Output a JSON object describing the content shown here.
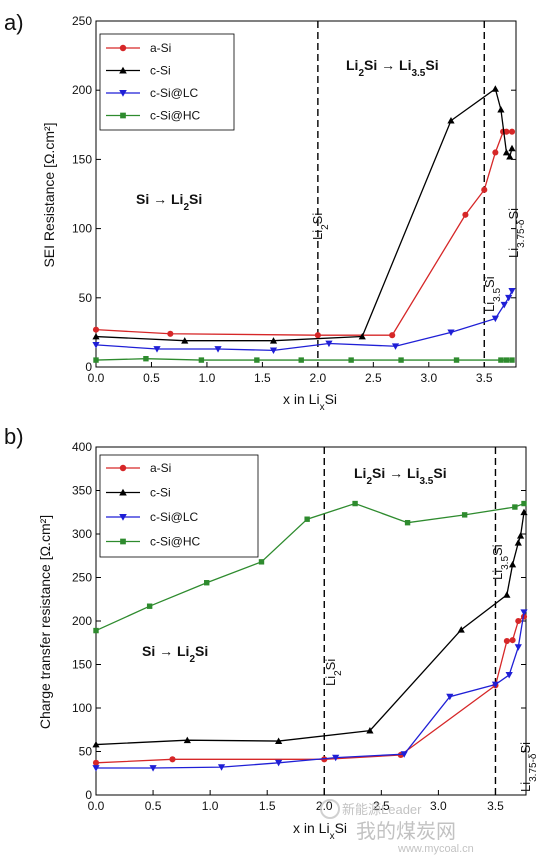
{
  "chart_data": [
    {
      "type": "line",
      "panel_label": "a)",
      "xlabel": "x in LiₓSi",
      "xlabel_main": "x in Li",
      "xlabel_sub": "x",
      "xlabel_tail": "Si",
      "ylabel": "SEI Resistance [Ω.cm²]",
      "xlim": [
        0,
        3.75
      ],
      "ylim": [
        0,
        250
      ],
      "xticks": [
        "0.0",
        "0.5",
        "1.0",
        "1.5",
        "2.0",
        "2.5",
        "3.0",
        "3.5"
      ],
      "yticks": [
        "0",
        "50",
        "100",
        "150",
        "200",
        "250"
      ],
      "grid": false,
      "legend_position": "top-left",
      "series": [
        {
          "name": "a-Si",
          "color": "#d62728",
          "marker": "circle",
          "x": [
            0,
            0.67,
            2.0,
            2.67,
            3.33,
            3.5,
            3.6,
            3.67,
            3.7,
            3.75
          ],
          "y": [
            27,
            24,
            23,
            23,
            110,
            128,
            155,
            170,
            170,
            170
          ]
        },
        {
          "name": "c-Si",
          "color": "#000000",
          "marker": "triangle-up",
          "x": [
            0,
            0.8,
            1.6,
            2.4,
            3.2,
            3.6,
            3.65,
            3.7,
            3.73,
            3.75
          ],
          "y": [
            22,
            19,
            19,
            22,
            178,
            201,
            186,
            155,
            152,
            158
          ]
        },
        {
          "name": "c-Si@LC",
          "color": "#1f1fd6",
          "marker": "triangle-down",
          "x": [
            0,
            0.55,
            1.1,
            1.6,
            2.1,
            2.7,
            3.2,
            3.6,
            3.68,
            3.72,
            3.75
          ],
          "y": [
            16,
            13,
            13,
            12,
            17,
            15,
            25,
            35,
            45,
            50,
            55
          ]
        },
        {
          "name": "c-Si@HC",
          "color": "#2e8b2e",
          "marker": "square",
          "x": [
            0,
            0.45,
            0.95,
            1.45,
            1.85,
            2.3,
            2.75,
            3.25,
            3.65,
            3.7,
            3.75
          ],
          "y": [
            5,
            6,
            5,
            5,
            5,
            5,
            5,
            5,
            5,
            5,
            5
          ]
        }
      ],
      "vlines": [
        2.0,
        3.5
      ],
      "annotations": {
        "region1_main": "Si → Li",
        "region1_sub": "2",
        "region1_tail": "Si",
        "region2_a": "Li",
        "region2_a_sub": "2",
        "region2_b": "Si → Li",
        "region2_b_sub": "3.5",
        "region2_c": "Si",
        "vline1_main": "Li",
        "vline1_sub": "2",
        "vline1_tail": "Si",
        "vline2_main": "Li",
        "vline2_sub": "3.5",
        "vline2_tail": "Si",
        "vline3_main": "Li",
        "vline3_sub": "3.75-δ",
        "vline3_tail": "Si"
      }
    },
    {
      "type": "line",
      "panel_label": "b)",
      "xlabel": "x in LiₓSi",
      "xlabel_main": "x in Li",
      "xlabel_sub": "x",
      "xlabel_tail": "Si",
      "ylabel": "Charge transfer resistance [Ω.cm²]",
      "xlim": [
        0,
        3.75
      ],
      "ylim": [
        0,
        400
      ],
      "xticks": [
        "0.0",
        "0.5",
        "1.0",
        "1.5",
        "2.0",
        "2.5",
        "3.0",
        "3.5"
      ],
      "yticks": [
        "0",
        "50",
        "100",
        "150",
        "200",
        "250",
        "300",
        "350",
        "400"
      ],
      "grid": false,
      "legend_position": "top-left",
      "series": [
        {
          "name": "a-Si",
          "color": "#d62728",
          "marker": "circle",
          "x": [
            0,
            0.67,
            2.0,
            2.67,
            3.5,
            3.6,
            3.65,
            3.7,
            3.75
          ],
          "y": [
            37,
            41,
            41,
            46,
            126,
            177,
            178,
            200,
            205
          ]
        },
        {
          "name": "c-Si",
          "color": "#000000",
          "marker": "triangle-up",
          "x": [
            0,
            0.8,
            1.6,
            2.4,
            3.2,
            3.6,
            3.65,
            3.7,
            3.72,
            3.75
          ],
          "y": [
            58,
            63,
            62,
            74,
            190,
            230,
            265,
            290,
            298,
            325
          ]
        },
        {
          "name": "c-Si@LC",
          "color": "#1f1fd6",
          "marker": "triangle-down",
          "x": [
            0,
            0.5,
            1.1,
            1.6,
            2.1,
            2.7,
            3.1,
            3.5,
            3.62,
            3.7,
            3.75
          ],
          "y": [
            31,
            31,
            32,
            37,
            43,
            47,
            113,
            127,
            138,
            170,
            210
          ]
        },
        {
          "name": "c-Si@HC",
          "color": "#2e8b2e",
          "marker": "square",
          "x": [
            0,
            0.47,
            0.97,
            1.45,
            1.85,
            2.27,
            2.73,
            3.23,
            3.67,
            3.75
          ],
          "y": [
            189,
            217,
            244,
            268,
            317,
            335,
            313,
            322,
            331,
            335
          ]
        }
      ],
      "vlines": [
        2.0,
        3.5
      ],
      "annotations": {
        "region1_main": "Si → Li",
        "region1_sub": "2",
        "region1_tail": "Si",
        "region2_a": "Li",
        "region2_a_sub": "2",
        "region2_b": "Si → Li",
        "region2_b_sub": "3.5",
        "region2_c": "Si",
        "vline1_main": "Li",
        "vline1_sub": "2",
        "vline1_tail": "Si",
        "vline2_main": "Li",
        "vline2_sub": "3.5",
        "vline2_tail": "Si",
        "vline3_main": "Li",
        "vline3_sub": "3.75-δ",
        "vline3_tail": "Si"
      }
    }
  ],
  "watermark": {
    "line1": "新能源Leader",
    "line2": "我的煤炭网",
    "line3": "www.mycoal.cn"
  }
}
